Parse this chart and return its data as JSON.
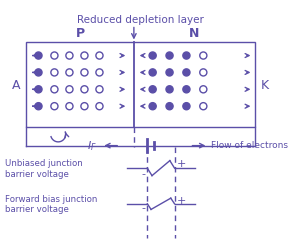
{
  "color": "#5b4fa8",
  "bg": "#ffffff",
  "title": "Reduced depletion layer",
  "p_label": "P",
  "n_label": "N",
  "a_label": "A",
  "k_label": "K",
  "if_label": "$I_F$",
  "flow_label": "Flow of electrons",
  "unbiased_label": "Unbiased junction\nbarrier voltage",
  "forward_label": "Forward bias junction\nbarrier voltage"
}
